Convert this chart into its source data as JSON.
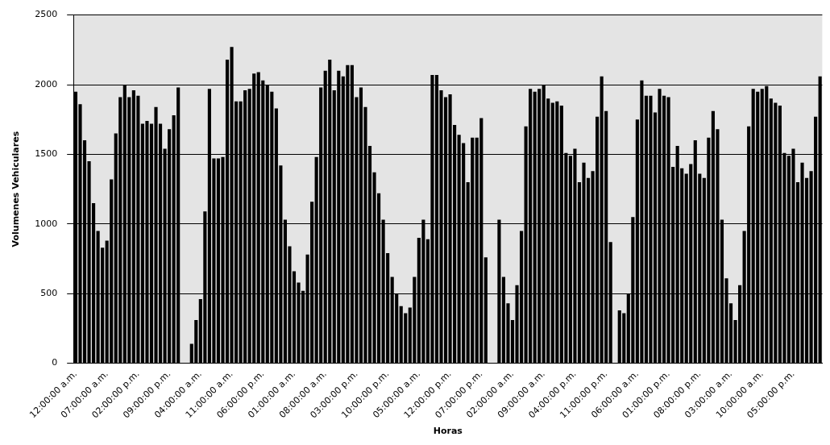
{
  "chart_data": {
    "type": "bar",
    "xlabel": "Horas",
    "ylabel": "Volumenes Vehiculares",
    "categories": [
      "12:00:00 a.m.",
      null,
      null,
      null,
      null,
      null,
      null,
      "07:00:00 a.m.",
      null,
      null,
      null,
      null,
      null,
      null,
      "02:00:00 p.m.",
      null,
      null,
      null,
      null,
      null,
      null,
      "09:00:00 p.m.",
      null,
      null,
      null,
      null,
      null,
      null,
      "04:00:00 a.m.",
      null,
      null,
      null,
      null,
      null,
      null,
      "11:00:00 a.m.",
      null,
      null,
      null,
      null,
      null,
      null,
      "06:00:00 p.m.",
      null,
      null,
      null,
      null,
      null,
      null,
      "01:00:00 a.m.",
      null,
      null,
      null,
      null,
      null,
      null,
      "08:00:00 a.m.",
      null,
      null,
      null,
      null,
      null,
      null,
      "03:00:00 p.m.",
      null,
      null,
      null,
      null,
      null,
      null,
      "10:00:00 p.m.",
      null,
      null,
      null,
      null,
      null,
      null,
      "05:00:00 a.m.",
      null,
      null,
      null,
      null,
      null,
      null,
      "12:00:00 p.m.",
      null,
      null,
      null,
      null,
      null,
      null,
      "07:00:00 p.m.",
      null,
      null,
      null,
      null,
      null,
      null,
      "02:00:00 a.m.",
      null,
      null,
      null,
      null,
      null,
      null,
      "09:00:00 a.m.",
      null,
      null,
      null,
      null,
      null,
      null,
      "04:00:00 p.m.",
      null,
      null,
      null,
      null,
      null,
      null,
      "11:00:00 p.m.",
      null,
      null,
      null,
      null,
      null,
      null,
      "06:00:00 a.m.",
      null,
      null,
      null,
      null,
      null,
      null,
      "01:00:00 p.m.",
      null,
      null,
      null,
      null,
      null,
      null,
      "08:00:00 p.m.",
      null,
      null,
      null,
      null,
      null,
      null,
      "03:00:00 a.m.",
      null,
      null,
      null,
      null,
      null,
      null,
      "10:00:00 a.m.",
      null,
      null,
      null,
      null,
      null,
      null,
      "05:00:00 p.m.",
      null,
      null,
      null,
      null,
      null,
      null
    ],
    "values": [
      1950,
      1860,
      1600,
      1450,
      1150,
      950,
      830,
      880,
      1320,
      1650,
      1910,
      2000,
      1910,
      1960,
      1920,
      1720,
      1740,
      1720,
      1840,
      1720,
      1540,
      1680,
      1780,
      1980,
      0,
      0,
      140,
      310,
      460,
      1090,
      1970,
      1470,
      1470,
      1480,
      2180,
      2270,
      1880,
      1880,
      1960,
      1970,
      2080,
      2090,
      2030,
      2000,
      1950,
      1830,
      1420,
      1030,
      840,
      660,
      580,
      520,
      780,
      1160,
      1480,
      1980,
      2100,
      2180,
      1960,
      2100,
      2060,
      2140,
      2140,
      1910,
      1980,
      1840,
      1560,
      1370,
      1220,
      1030,
      790,
      620,
      500,
      410,
      360,
      400,
      620,
      900,
      1030,
      890,
      2070,
      2070,
      1960,
      1910,
      1930,
      1710,
      1640,
      1580,
      1300,
      1620,
      1620,
      1760,
      760,
      0,
      0,
      1030,
      620,
      430,
      310,
      560,
      950,
      1700,
      1970,
      1950,
      1970,
      2000,
      1900,
      1870,
      1880,
      1850,
      1510,
      1490,
      1540,
      1300,
      1440,
      1330,
      1380,
      1770,
      2060,
      1810,
      870,
      0,
      380,
      360,
      500,
      1050,
      1750,
      2030,
      1920,
      1920,
      1800,
      1970,
      1920,
      1910,
      1410,
      1560,
      1400,
      1360,
      1430,
      1600,
      1360,
      1330,
      1620,
      1810,
      1680,
      1030,
      610,
      430,
      310,
      560,
      950,
      1700,
      1970,
      1950,
      1970,
      1990,
      1900,
      1870,
      1850,
      1510,
      1490,
      1540,
      1300,
      1440,
      1330,
      1380,
      1770,
      2060
    ],
    "color": "#000000",
    "ylim": [
      0,
      2500
    ],
    "yticks": [
      0,
      500,
      1000,
      1500,
      2000,
      2500
    ],
    "grid": "y",
    "legend": false
  }
}
